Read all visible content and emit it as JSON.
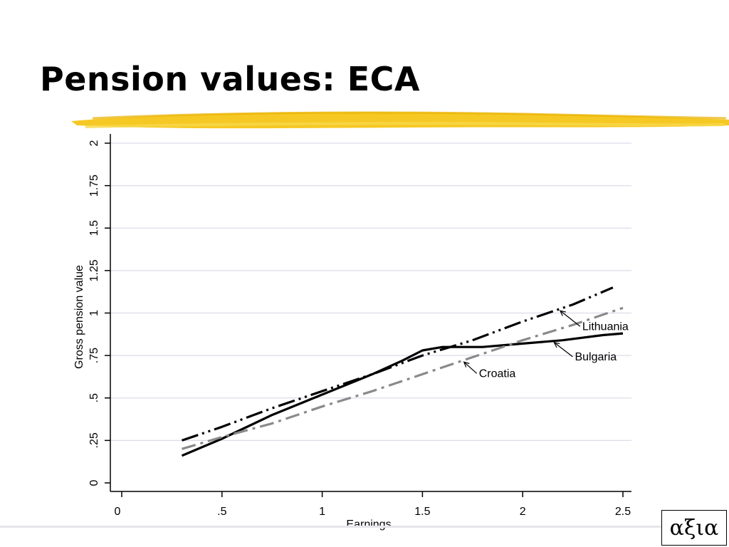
{
  "slide": {
    "title": "Pension values: ECA",
    "logo_text": "αξια"
  },
  "colors": {
    "highlighter": "#f5c518",
    "grid": "#dcdcea",
    "series_dark": "#000000",
    "series_gray": "#8a8a8a"
  },
  "chart_data": {
    "type": "line",
    "title": "",
    "xlabel": "Earnings",
    "ylabel": "Gross pension value",
    "xlim": [
      0,
      2.5
    ],
    "ylim": [
      0,
      2
    ],
    "xticks": [
      0,
      0.5,
      1,
      1.5,
      2,
      2.5
    ],
    "xtick_labels": [
      "0",
      ".5",
      "1",
      "1.5",
      "2",
      "2.5"
    ],
    "yticks": [
      0,
      0.25,
      0.5,
      0.75,
      1,
      1.25,
      1.5,
      1.75,
      2
    ],
    "ytick_labels": [
      "0",
      ".25",
      ".5",
      ".75",
      "1",
      "1.25",
      "1.5",
      "1.75",
      "2"
    ],
    "grid": true,
    "legend": "none",
    "series": [
      {
        "name": "Lithuania",
        "style": "dash-dot-dot",
        "color": "#000000",
        "x": [
          0.3,
          0.5,
          0.75,
          1.0,
          1.25,
          1.5,
          1.75,
          2.0,
          2.25,
          2.45
        ],
        "y": [
          0.25,
          0.33,
          0.44,
          0.54,
          0.64,
          0.75,
          0.84,
          0.95,
          1.05,
          1.15
        ]
      },
      {
        "name": "Bulgaria",
        "style": "solid",
        "color": "#000000",
        "x": [
          0.3,
          0.5,
          0.75,
          1.0,
          1.25,
          1.4,
          1.5,
          1.6,
          1.8,
          2.0,
          2.2,
          2.4,
          2.5
        ],
        "y": [
          0.16,
          0.26,
          0.4,
          0.52,
          0.64,
          0.72,
          0.78,
          0.8,
          0.8,
          0.82,
          0.84,
          0.87,
          0.88
        ]
      },
      {
        "name": "Croatia",
        "style": "dash-dot",
        "color": "#8a8a8a",
        "x": [
          0.3,
          0.5,
          0.75,
          1.0,
          1.25,
          1.5,
          1.75,
          2.0,
          2.25,
          2.5
        ],
        "y": [
          0.2,
          0.27,
          0.35,
          0.45,
          0.54,
          0.64,
          0.74,
          0.84,
          0.93,
          1.03
        ]
      }
    ],
    "annotations": [
      {
        "text": "Lithuania",
        "series": "Lithuania",
        "x": 2.18
      },
      {
        "text": "Bulgaria",
        "series": "Bulgaria",
        "x": 2.15
      },
      {
        "text": "Croatia",
        "series": "Croatia",
        "x": 1.7
      }
    ]
  }
}
